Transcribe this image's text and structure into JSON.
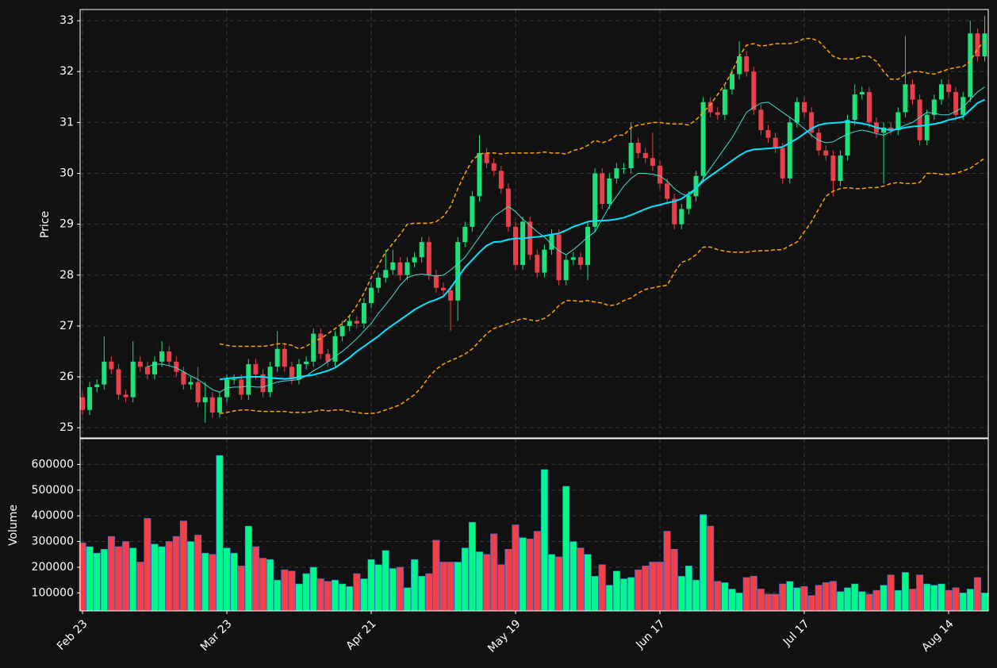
{
  "chart_data": {
    "type": "candlestick",
    "categories": [
      "Feb 23",
      null,
      null,
      null,
      null,
      null,
      null,
      null,
      null,
      null,
      null,
      null,
      null,
      null,
      null,
      null,
      null,
      null,
      null,
      null,
      "Mar 23",
      null,
      null,
      null,
      null,
      null,
      null,
      null,
      null,
      null,
      null,
      null,
      null,
      null,
      null,
      null,
      null,
      null,
      null,
      null,
      "Apr 21",
      null,
      null,
      null,
      null,
      null,
      null,
      null,
      null,
      null,
      null,
      null,
      null,
      null,
      null,
      null,
      null,
      null,
      null,
      null,
      "May 19",
      null,
      null,
      null,
      null,
      null,
      null,
      null,
      null,
      null,
      null,
      null,
      null,
      null,
      null,
      null,
      null,
      null,
      null,
      null,
      "Jun 17",
      null,
      null,
      null,
      null,
      null,
      null,
      null,
      null,
      null,
      null,
      null,
      null,
      null,
      null,
      null,
      null,
      null,
      null,
      null,
      "Jul 17",
      null,
      null,
      null,
      null,
      null,
      null,
      null,
      null,
      null,
      null,
      null,
      null,
      null,
      null,
      null,
      null,
      null,
      null,
      null,
      "Aug 14",
      null,
      null,
      null,
      null,
      null
    ],
    "open": [
      25.6,
      25.35,
      25.8,
      25.85,
      26.3,
      26.15,
      25.65,
      25.6,
      26.3,
      26.2,
      26.05,
      26.3,
      26.5,
      26.3,
      26.1,
      25.85,
      25.9,
      25.5,
      25.6,
      25.3,
      25.6,
      25.95,
      25.95,
      25.65,
      26.25,
      26.05,
      25.7,
      26.2,
      26.55,
      26.2,
      25.95,
      26.25,
      26.3,
      26.85,
      26.45,
      26.3,
      26.8,
      27.0,
      27.1,
      27.05,
      27.45,
      27.75,
      27.95,
      28.1,
      28.25,
      28.0,
      28.25,
      28.35,
      28.65,
      28.0,
      27.75,
      27.7,
      27.5,
      28.65,
      28.95,
      29.55,
      30.4,
      30.2,
      30.05,
      29.7,
      28.95,
      28.2,
      29.05,
      28.4,
      28.05,
      28.5,
      28.8,
      27.9,
      28.3,
      28.35,
      28.2,
      28.95,
      30.0,
      29.4,
      29.9,
      30.1,
      30.1,
      30.6,
      30.4,
      30.3,
      30.15,
      29.8,
      29.5,
      29.0,
      29.3,
      29.55,
      29.95,
      31.4,
      31.2,
      31.15,
      31.65,
      31.95,
      32.3,
      32.0,
      31.25,
      30.85,
      30.7,
      30.5,
      29.9,
      31.0,
      31.4,
      31.2,
      30.8,
      30.45,
      30.35,
      29.85,
      30.35,
      31.05,
      31.55,
      31.6,
      31.0,
      30.8,
      30.9,
      30.85,
      31.2,
      31.75,
      31.45,
      30.65,
      31.15,
      31.45,
      31.75,
      31.6,
      31.15,
      31.5,
      32.75,
      32.3
    ],
    "high": [
      25.7,
      25.9,
      25.95,
      26.8,
      26.4,
      26.25,
      25.75,
      26.7,
      26.4,
      26.3,
      26.4,
      26.7,
      26.6,
      26.4,
      26.2,
      26.0,
      26.2,
      25.9,
      25.7,
      25.7,
      26.05,
      26.05,
      26.05,
      26.35,
      26.35,
      26.15,
      26.3,
      26.9,
      26.65,
      26.3,
      26.35,
      26.4,
      26.95,
      26.95,
      26.55,
      26.9,
      27.1,
      27.2,
      27.2,
      27.55,
      27.85,
      28.05,
      28.5,
      28.5,
      28.35,
      28.35,
      28.45,
      28.75,
      28.75,
      28.1,
      27.85,
      27.8,
      28.75,
      29.05,
      29.65,
      30.75,
      30.5,
      30.3,
      30.15,
      29.8,
      29.05,
      29.15,
      29.15,
      28.5,
      28.6,
      28.9,
      28.9,
      28.4,
      28.45,
      28.45,
      29.05,
      30.1,
      30.1,
      30.0,
      30.2,
      30.2,
      31.0,
      30.7,
      30.5,
      30.8,
      30.25,
      29.9,
      29.6,
      29.4,
      29.65,
      30.05,
      31.5,
      31.5,
      31.3,
      31.75,
      32.05,
      32.6,
      32.4,
      32.1,
      31.35,
      30.95,
      30.8,
      30.6,
      31.1,
      31.5,
      31.5,
      31.3,
      30.9,
      30.55,
      30.45,
      30.45,
      31.15,
      31.75,
      31.7,
      31.7,
      31.1,
      31.0,
      31.0,
      31.3,
      32.7,
      31.85,
      31.55,
      31.25,
      31.55,
      31.85,
      31.85,
      31.7,
      31.6,
      33.0,
      32.85,
      33.1
    ],
    "low": [
      25.25,
      25.25,
      25.7,
      25.75,
      26.05,
      25.55,
      25.5,
      25.5,
      26.1,
      25.95,
      25.95,
      26.2,
      26.2,
      26.0,
      25.75,
      25.75,
      25.4,
      25.1,
      25.2,
      25.2,
      25.5,
      25.85,
      25.55,
      25.55,
      25.95,
      25.6,
      25.6,
      26.1,
      26.1,
      25.85,
      25.85,
      26.15,
      26.2,
      26.35,
      26.2,
      26.2,
      26.7,
      26.9,
      26.95,
      26.95,
      27.35,
      27.65,
      27.85,
      28.0,
      27.9,
      27.9,
      28.15,
      28.25,
      27.9,
      27.65,
      27.6,
      26.9,
      27.1,
      28.55,
      28.85,
      29.45,
      30.1,
      29.95,
      29.6,
      28.85,
      28.1,
      28.1,
      28.3,
      27.95,
      27.95,
      28.4,
      27.8,
      27.8,
      28.2,
      28.1,
      27.9,
      28.85,
      29.3,
      29.3,
      29.8,
      30.0,
      30.0,
      30.3,
      30.2,
      30.05,
      29.7,
      29.4,
      28.9,
      28.9,
      29.2,
      29.45,
      29.85,
      31.1,
      31.05,
      31.05,
      31.55,
      31.85,
      31.9,
      31.15,
      30.75,
      30.6,
      30.4,
      29.8,
      29.8,
      30.9,
      31.1,
      30.7,
      30.35,
      30.25,
      29.55,
      29.75,
      30.25,
      30.95,
      31.45,
      30.9,
      30.7,
      29.8,
      30.75,
      30.75,
      31.1,
      31.35,
      30.55,
      30.55,
      31.05,
      31.35,
      31.5,
      31.05,
      31.05,
      31.4,
      32.2,
      32.2
    ],
    "close": [
      25.35,
      25.8,
      25.85,
      26.3,
      26.15,
      25.65,
      25.6,
      26.3,
      26.2,
      26.05,
      26.3,
      26.5,
      26.3,
      26.1,
      25.85,
      25.9,
      25.5,
      25.6,
      25.3,
      25.6,
      25.95,
      25.95,
      25.65,
      26.25,
      26.05,
      25.7,
      26.2,
      26.55,
      26.2,
      25.95,
      26.25,
      26.3,
      26.85,
      26.45,
      26.3,
      26.8,
      27.0,
      27.1,
      27.05,
      27.45,
      27.75,
      27.95,
      28.1,
      28.25,
      28.0,
      28.25,
      28.35,
      28.65,
      28.0,
      27.75,
      27.7,
      27.5,
      28.65,
      28.95,
      29.55,
      30.4,
      30.2,
      30.05,
      29.7,
      28.95,
      28.2,
      29.05,
      28.4,
      28.05,
      28.5,
      28.8,
      27.9,
      28.3,
      28.35,
      28.2,
      28.95,
      30.0,
      29.4,
      29.9,
      30.1,
      30.1,
      30.6,
      30.4,
      30.3,
      30.15,
      29.8,
      29.5,
      29.0,
      29.3,
      29.55,
      29.95,
      31.4,
      31.2,
      31.15,
      31.65,
      31.95,
      32.3,
      32.0,
      31.25,
      30.85,
      30.7,
      30.5,
      29.9,
      31.0,
      31.4,
      31.2,
      30.8,
      30.45,
      30.35,
      29.85,
      30.35,
      31.05,
      31.55,
      31.6,
      31.0,
      30.8,
      30.9,
      30.85,
      31.2,
      31.75,
      31.45,
      30.65,
      31.15,
      31.45,
      31.75,
      31.6,
      31.15,
      31.5,
      32.75,
      32.3,
      32.75
    ],
    "up_color": "#1fe07a",
    "down_color": "#e8404a",
    "ylabel": "Price",
    "ylim": [
      24.8,
      33.22
    ],
    "yticks": [
      25,
      26,
      27,
      28,
      29,
      30,
      31,
      32,
      33
    ],
    "grid": true,
    "lines": [
      {
        "color": "#40e0d0",
        "width": 1,
        "dashed": false,
        "values": [
          null,
          null,
          null,
          null,
          null,
          null,
          null,
          null,
          null,
          26.2,
          26.25,
          26.25,
          26.22,
          26.18,
          26.1,
          26.02,
          25.95,
          25.85,
          25.75,
          25.7,
          25.78,
          25.8,
          25.8,
          25.82,
          25.8,
          25.8,
          25.85,
          25.9,
          25.92,
          25.93,
          25.95,
          26.02,
          26.12,
          26.2,
          26.3,
          26.4,
          26.5,
          26.62,
          26.75,
          26.9,
          27.05,
          27.25,
          27.42,
          27.6,
          27.8,
          27.95,
          28.0,
          28.02,
          28.0,
          27.98,
          28.0,
          28.1,
          28.22,
          28.35,
          28.55,
          28.75,
          28.95,
          29.15,
          29.25,
          29.35,
          29.25,
          29.1,
          28.98,
          28.85,
          28.75,
          28.6,
          28.48,
          28.4,
          28.5,
          28.62,
          28.75,
          28.85,
          29.1,
          29.35,
          29.55,
          29.75,
          29.9,
          30.0,
          30.0,
          29.98,
          29.95,
          29.85,
          29.7,
          29.6,
          29.55,
          29.7,
          29.9,
          30.1,
          30.3,
          30.5,
          30.7,
          30.95,
          31.2,
          31.3,
          31.38,
          31.4,
          31.3,
          31.2,
          31.1,
          31.0,
          30.88,
          30.75,
          30.65,
          30.6,
          30.62,
          30.7,
          30.77,
          30.82,
          30.85,
          30.82,
          30.78,
          30.75,
          30.82,
          30.88,
          30.95,
          31.0,
          31.1,
          31.2,
          31.18,
          31.15,
          31.15,
          31.22,
          31.3,
          31.45,
          31.6,
          31.7
        ]
      },
      {
        "color": "#00e5ff",
        "width": 2,
        "dashed": false,
        "values": [
          null,
          null,
          null,
          null,
          null,
          null,
          null,
          null,
          null,
          null,
          null,
          null,
          null,
          null,
          null,
          null,
          null,
          null,
          null,
          25.95,
          25.97,
          25.98,
          25.99,
          26.0,
          26.0,
          26.0,
          25.98,
          25.97,
          25.96,
          25.97,
          26.0,
          26.02,
          26.04,
          26.08,
          26.12,
          26.18,
          26.28,
          26.38,
          26.5,
          26.6,
          26.7,
          26.8,
          26.92,
          27.02,
          27.12,
          27.22,
          27.32,
          27.4,
          27.47,
          27.52,
          27.58,
          27.75,
          27.95,
          28.15,
          28.3,
          28.45,
          28.58,
          28.65,
          28.66,
          28.7,
          28.72,
          28.72,
          28.74,
          28.75,
          28.77,
          28.8,
          28.82,
          28.88,
          28.95,
          29.0,
          29.05,
          29.07,
          29.07,
          29.08,
          29.1,
          29.13,
          29.18,
          29.24,
          29.3,
          29.35,
          29.38,
          29.42,
          29.45,
          29.5,
          29.6,
          29.7,
          29.85,
          29.95,
          30.05,
          30.15,
          30.25,
          30.35,
          30.43,
          30.47,
          30.48,
          30.49,
          30.5,
          30.52,
          30.6,
          30.68,
          30.78,
          30.88,
          30.95,
          30.98,
          30.99,
          31.0,
          31.02,
          31.0,
          30.98,
          30.95,
          30.9,
          30.87,
          30.85,
          30.87,
          30.9,
          30.92,
          30.93,
          30.95,
          30.97,
          31.0,
          31.05,
          31.08,
          31.12,
          31.25,
          31.38,
          31.45
        ]
      },
      {
        "color": "#ffa500",
        "width": 1.5,
        "dashed": true,
        "values": [
          null,
          null,
          null,
          null,
          null,
          null,
          null,
          null,
          null,
          null,
          null,
          null,
          null,
          null,
          null,
          null,
          null,
          null,
          null,
          26.65,
          26.62,
          26.6,
          26.6,
          26.6,
          26.6,
          26.6,
          26.62,
          26.65,
          26.65,
          26.62,
          26.55,
          26.6,
          26.7,
          26.75,
          26.85,
          26.95,
          27.05,
          27.2,
          27.4,
          27.65,
          27.95,
          28.2,
          28.45,
          28.62,
          28.8,
          29.0,
          29.02,
          29.02,
          29.02,
          29.05,
          29.15,
          29.35,
          29.7,
          30.0,
          30.25,
          30.38,
          30.4,
          30.4,
          30.38,
          30.4,
          30.4,
          30.4,
          30.4,
          30.4,
          30.42,
          30.4,
          30.4,
          30.38,
          30.45,
          30.48,
          30.55,
          30.65,
          30.6,
          30.65,
          30.75,
          30.75,
          30.9,
          30.95,
          30.97,
          31.0,
          31.0,
          30.98,
          30.97,
          30.97,
          30.95,
          31.05,
          31.2,
          31.35,
          31.55,
          31.75,
          32.0,
          32.3,
          32.52,
          32.55,
          32.5,
          32.52,
          32.55,
          32.55,
          32.55,
          32.58,
          32.65,
          32.65,
          32.6,
          32.45,
          32.3,
          32.25,
          32.25,
          32.25,
          32.3,
          32.3,
          32.2,
          32.0,
          31.85,
          31.85,
          31.95,
          32.0,
          32.0,
          31.97,
          31.95,
          32.0,
          32.05,
          32.08,
          32.1,
          32.2,
          32.45,
          32.6
        ]
      },
      {
        "color": "#ffa500",
        "width": 1.5,
        "dashed": true,
        "values": [
          null,
          null,
          null,
          null,
          null,
          null,
          null,
          null,
          null,
          null,
          null,
          null,
          null,
          null,
          null,
          null,
          null,
          null,
          null,
          25.28,
          25.3,
          25.33,
          25.35,
          25.35,
          25.33,
          25.32,
          25.32,
          25.32,
          25.32,
          25.3,
          25.3,
          25.3,
          25.32,
          25.35,
          25.33,
          25.35,
          25.35,
          25.32,
          25.3,
          25.28,
          25.28,
          25.3,
          25.35,
          25.4,
          25.45,
          25.55,
          25.65,
          25.8,
          26.0,
          26.15,
          26.25,
          26.32,
          26.38,
          26.45,
          26.55,
          26.7,
          26.85,
          26.95,
          27.0,
          27.05,
          27.1,
          27.15,
          27.12,
          27.1,
          27.15,
          27.25,
          27.4,
          27.5,
          27.5,
          27.48,
          27.5,
          27.47,
          27.45,
          27.4,
          27.42,
          27.5,
          27.55,
          27.65,
          27.72,
          27.75,
          27.78,
          27.8,
          28.05,
          28.25,
          28.3,
          28.4,
          28.55,
          28.55,
          28.5,
          28.47,
          28.45,
          28.45,
          28.45,
          28.47,
          28.48,
          28.48,
          28.5,
          28.5,
          28.58,
          28.65,
          28.85,
          29.05,
          29.3,
          29.55,
          29.65,
          29.7,
          29.72,
          29.7,
          29.7,
          29.72,
          29.72,
          29.75,
          29.8,
          29.82,
          29.8,
          29.8,
          29.82,
          30.0,
          30.0,
          29.98,
          29.98,
          30.0,
          30.05,
          30.1,
          30.2,
          30.3
        ]
      }
    ],
    "volume": {
      "ylabel": "Volume",
      "ylim": [
        30000,
        700000
      ],
      "yticks": [
        100000,
        200000,
        300000,
        400000,
        500000,
        600000
      ],
      "values": [
        295000,
        280000,
        255000,
        270000,
        320000,
        280000,
        300000,
        275000,
        220000,
        390000,
        290000,
        280000,
        300000,
        320000,
        380000,
        300000,
        325000,
        255000,
        250000,
        635000,
        275000,
        255000,
        205000,
        360000,
        280000,
        235000,
        230000,
        150000,
        190000,
        185000,
        135000,
        175000,
        200000,
        155000,
        145000,
        150000,
        135000,
        125000,
        175000,
        155000,
        230000,
        210000,
        265000,
        195000,
        200000,
        120000,
        230000,
        165000,
        175000,
        305000,
        220000,
        220000,
        220000,
        275000,
        375000,
        260000,
        250000,
        330000,
        210000,
        270000,
        365000,
        315000,
        310000,
        340000,
        580000,
        250000,
        240000,
        515000,
        300000,
        275000,
        250000,
        165000,
        210000,
        130000,
        185000,
        155000,
        160000,
        190000,
        205000,
        220000,
        220000,
        340000,
        270000,
        165000,
        205000,
        150000,
        405000,
        360000,
        145000,
        140000,
        115000,
        100000,
        160000,
        165000,
        115000,
        95000,
        95000,
        135000,
        145000,
        120000,
        125000,
        90000,
        130000,
        140000,
        145000,
        105000,
        120000,
        135000,
        105000,
        95000,
        110000,
        130000,
        170000,
        110000,
        180000,
        115000,
        170000,
        135000,
        130000,
        135000,
        110000,
        120000,
        100000,
        115000,
        160000,
        100000
      ]
    }
  }
}
